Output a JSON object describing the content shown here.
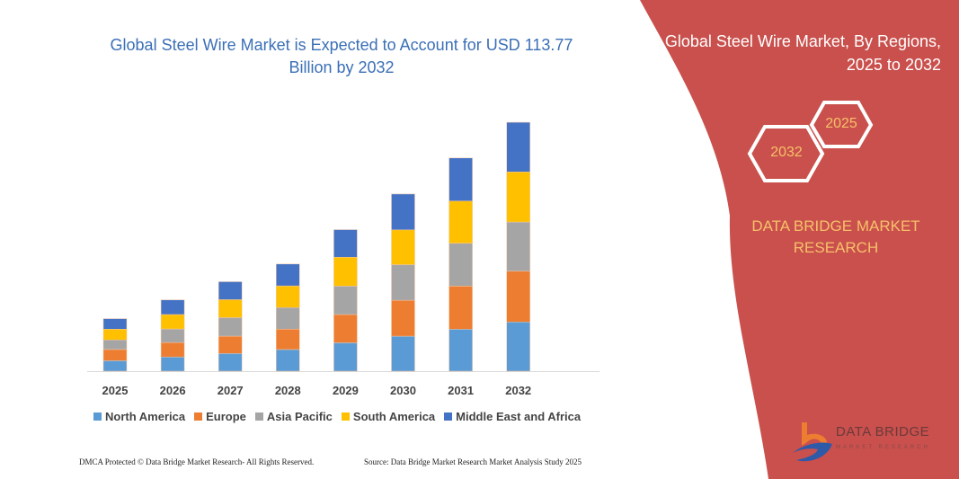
{
  "chart_data": {
    "type": "bar",
    "stacked": true,
    "title": "Global Steel Wire Market is Expected to Account for USD 113.77 Billion by 2032",
    "categories": [
      "2025",
      "2026",
      "2027",
      "2028",
      "2029",
      "2030",
      "2031",
      "2032"
    ],
    "series": [
      {
        "name": "North America",
        "color": "#5b9bd5",
        "values": [
          4.8,
          6.5,
          8.1,
          9.9,
          13.0,
          16.0,
          19.2,
          22.5
        ]
      },
      {
        "name": "Europe",
        "color": "#ed7d31",
        "values": [
          5.1,
          6.6,
          7.9,
          9.3,
          12.9,
          16.4,
          19.7,
          23.2
        ]
      },
      {
        "name": "Asia Pacific",
        "color": "#a5a5a5",
        "values": [
          4.4,
          6.2,
          8.5,
          9.9,
          13.0,
          16.3,
          19.6,
          22.5
        ]
      },
      {
        "name": "South America",
        "color": "#ffc000",
        "values": [
          4.9,
          6.6,
          8.2,
          9.9,
          13.2,
          15.9,
          19.3,
          22.9
        ]
      },
      {
        "name": "Middle East and Africa",
        "color": "#4472c4",
        "values": [
          4.8,
          6.7,
          8.2,
          10.0,
          12.6,
          16.4,
          19.7,
          22.7
        ]
      }
    ],
    "ylim": [
      0,
      120
    ],
    "grid": false,
    "legend": "bottom"
  },
  "side_panel": {
    "title": "Global Steel Wire Market, By Regions, 2025 to 2032",
    "hex_end": "2032",
    "hex_start": "2025",
    "brand": "DATA BRIDGE MARKET RESEARCH",
    "color": "#c9504c"
  },
  "logo": {
    "name": "DATA BRIDGE",
    "sub": "MARKET RESEARCH"
  },
  "footer": {
    "left": "DMCA Protected © Data Bridge Market Research- All Rights Reserved.",
    "right": "Source: Data Bridge Market Research Market Analysis Study 2025"
  }
}
